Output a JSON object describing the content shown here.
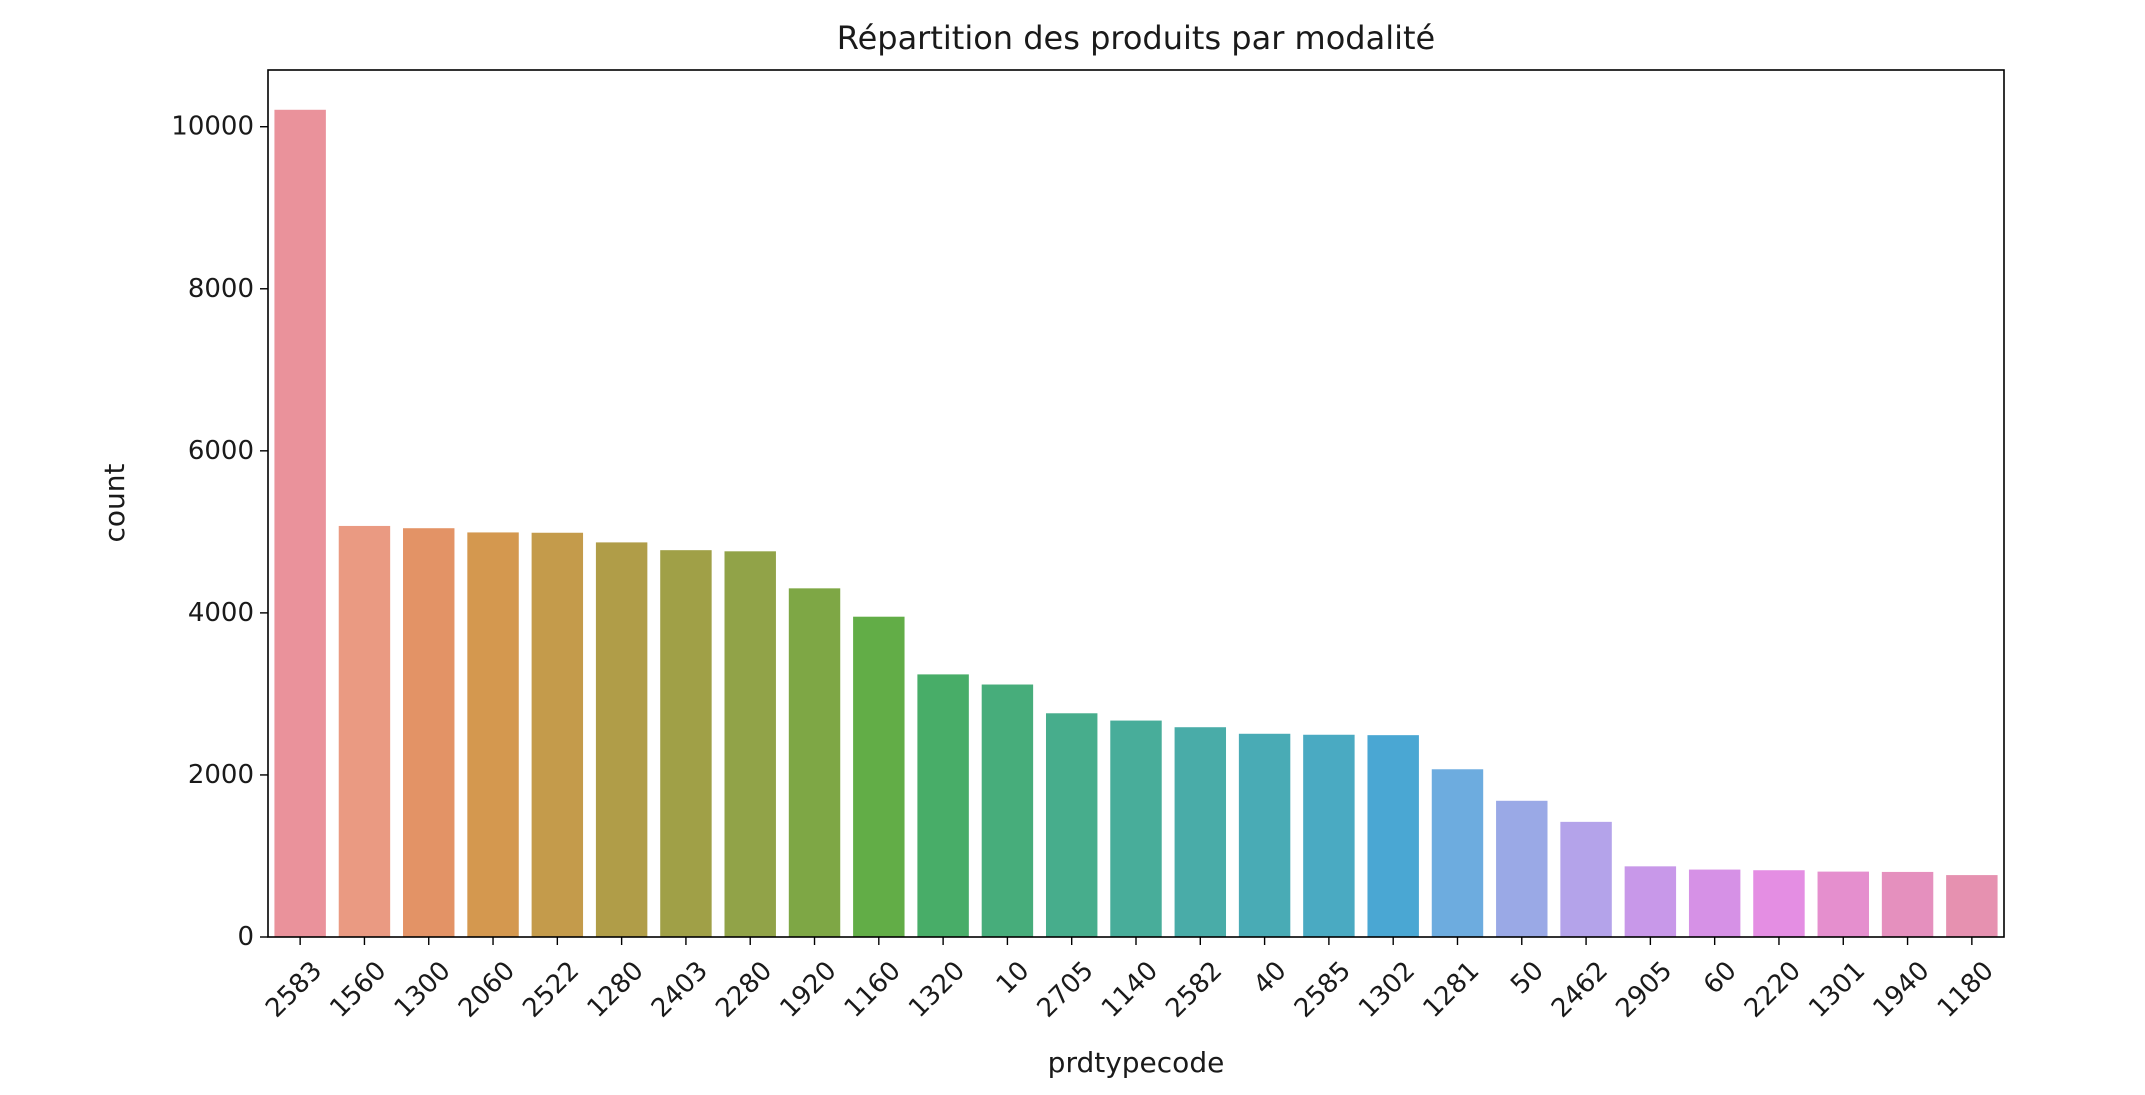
{
  "chart_data": {
    "type": "bar",
    "title": "Répartition des produits par modalité",
    "xlabel": "prdtypecode",
    "ylabel": "count",
    "ylim": [
      0,
      10700
    ],
    "yticks": [
      0,
      2000,
      4000,
      6000,
      8000,
      10000
    ],
    "grid": false,
    "legend": "none",
    "categories": [
      "2583",
      "1560",
      "1300",
      "2060",
      "2522",
      "1280",
      "2403",
      "2280",
      "1920",
      "1160",
      "1320",
      "10",
      "2705",
      "1140",
      "2582",
      "40",
      "2585",
      "1302",
      "1281",
      "50",
      "2462",
      "2905",
      "60",
      "2220",
      "1301",
      "1940",
      "1180"
    ],
    "values": [
      10209,
      5073,
      5045,
      4993,
      4989,
      4870,
      4774,
      4760,
      4303,
      3953,
      3241,
      3116,
      2761,
      2671,
      2589,
      2508,
      2496,
      2491,
      2070,
      1681,
      1421,
      872,
      832,
      824,
      807,
      803,
      764
    ],
    "colors": [
      "#ea929b",
      "#ea9a82",
      "#e39366",
      "#d4984f",
      "#c49b4b",
      "#b09d48",
      "#a0a047",
      "#91a348",
      "#7ea745",
      "#62ad47",
      "#48ad68",
      "#47ad7b",
      "#47ad8c",
      "#48ad9a",
      "#49aca8",
      "#49abb5",
      "#4aaac2",
      "#4aa7d3",
      "#6dacdf",
      "#9aa9e6",
      "#b4a3ea",
      "#c898e9",
      "#d691e6",
      "#e48ee3",
      "#e58fce",
      "#e590be",
      "#e691b0"
    ]
  }
}
